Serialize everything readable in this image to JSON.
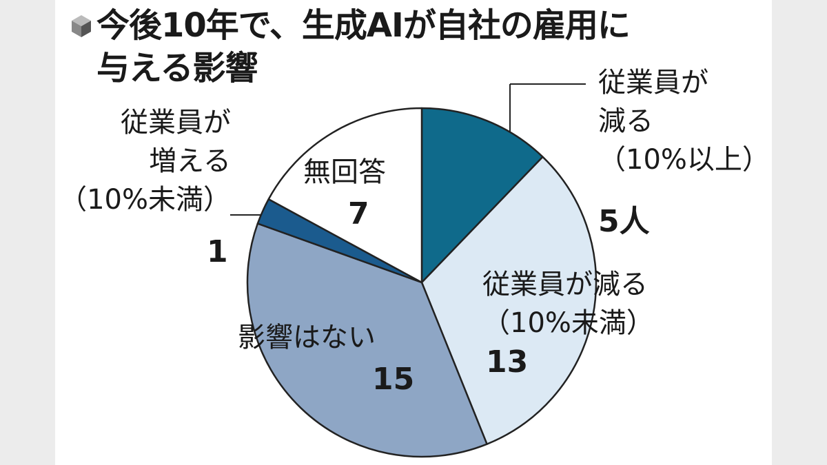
{
  "chart_data": {
    "type": "pie",
    "title": "今後10年で、生成AIが自社の雇用に\n与える影響",
    "categories": [
      "従業員が\n減る\n（10%以上）",
      "従業員が減る\n（10%未満）",
      "影響はない",
      "従業員が\n増える\n（10%未満）",
      "無回答"
    ],
    "values": [
      5,
      13,
      15,
      1,
      7
    ],
    "value_labels": [
      "5人",
      "13",
      "15",
      "1",
      "7"
    ],
    "colors": [
      "#0f6a8b",
      "#dce9f4",
      "#8ea6c5",
      "#1b5b8e",
      "#ffffff"
    ]
  }
}
